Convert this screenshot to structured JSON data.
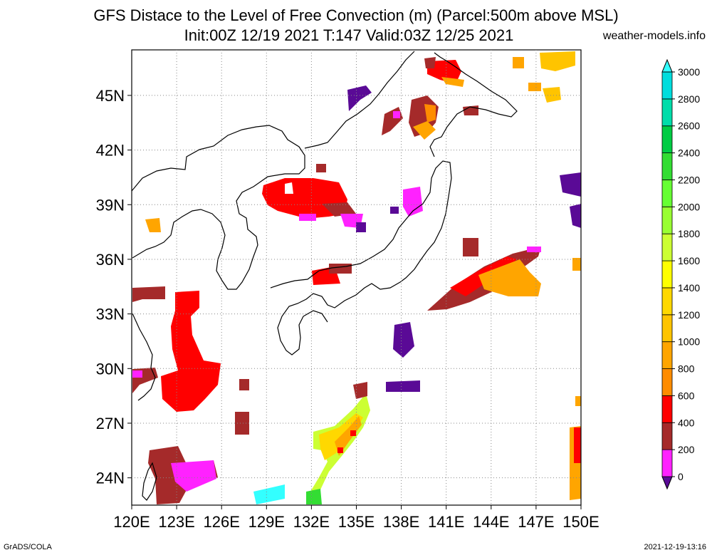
{
  "title": {
    "line1": "GFS Distace to the Level of Free Convection (m) (Parcel:500m above MSL)",
    "line2": "Init:00Z 12/19 2021 T:147 Valid:03Z 12/25 2021",
    "site": "weather-models.info"
  },
  "axes": {
    "lon_labels": [
      "120E",
      "123E",
      "126E",
      "129E",
      "132E",
      "135E",
      "138E",
      "141E",
      "144E",
      "147E",
      "150E"
    ],
    "lat_labels": [
      "24N",
      "27N",
      "30N",
      "33N",
      "36N",
      "39N",
      "42N",
      "45N"
    ],
    "lon_range": [
      120,
      150
    ],
    "lat_range": [
      22.5,
      47.5
    ],
    "grid": "dotted"
  },
  "colorbar": {
    "labels": [
      "0",
      "200",
      "400",
      "600",
      "800",
      "1000",
      "1200",
      "1400",
      "1600",
      "1800",
      "2000",
      "2200",
      "2400",
      "2600",
      "2800",
      "3000"
    ],
    "colors": [
      "#5a0a96",
      "#ff22ff",
      "#a52a2a",
      "#ff0000",
      "#ff8c00",
      "#ffa500",
      "#ffc400",
      "#ffd800",
      "#ffff00",
      "#ccff33",
      "#99ff33",
      "#66ff33",
      "#33dd33",
      "#00cc44",
      "#00ddaa",
      "#00dddd",
      "#33ffff"
    ]
  },
  "footer": {
    "credit": "GrADS/COLA",
    "timestamp": "2021-12-19-13:16"
  }
}
